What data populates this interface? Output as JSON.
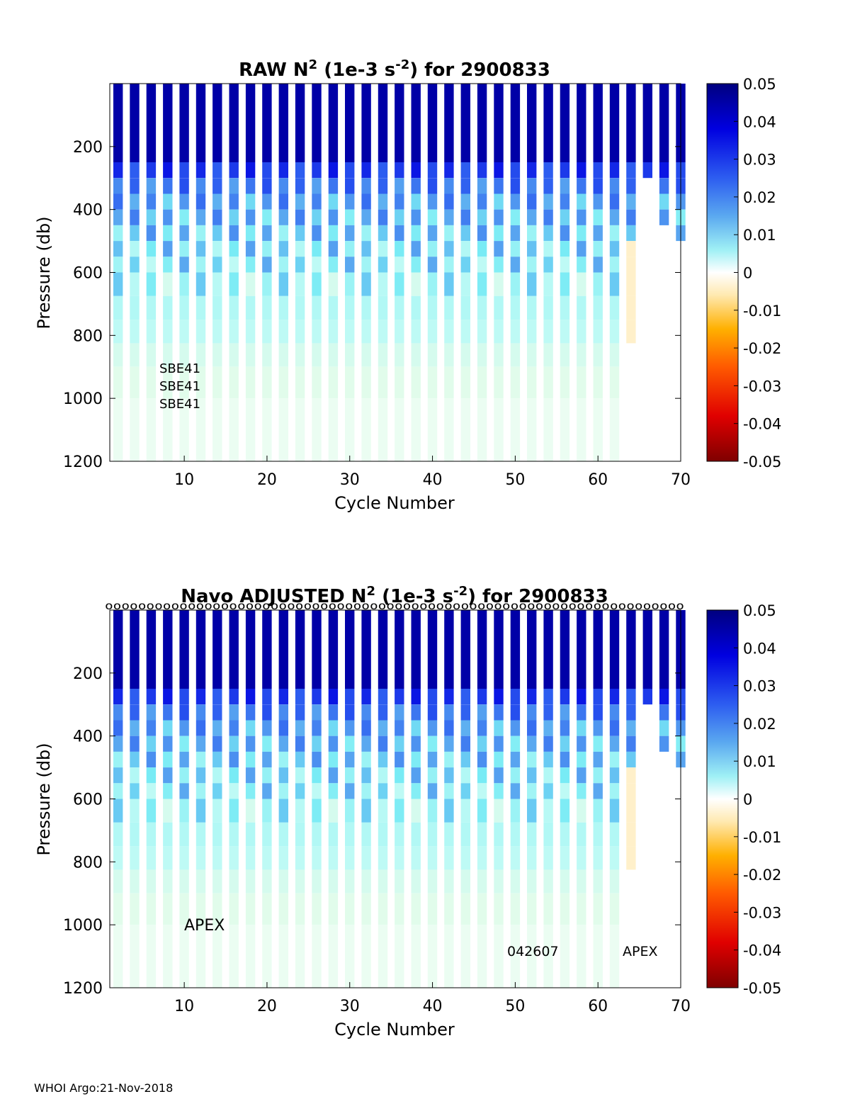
{
  "footer": "WHOI Argo:21-Nov-2018",
  "colorbar": {
    "ticks": [
      "0.05",
      "0.04",
      "0.03",
      "0.02",
      "0.01",
      "0",
      "-0.01",
      "-0.02",
      "-0.03",
      "-0.04",
      "-0.05"
    ],
    "range": [
      -0.05,
      0.05
    ]
  },
  "chart_data": [
    {
      "type": "heatmap",
      "title_main": "RAW N",
      "title_sup": "2",
      "title_mid": " (1e-3 s",
      "title_sup2": "-2",
      "title_end": ") for 2900833",
      "xlabel": "Cycle Number",
      "ylabel": "Pressure (db)",
      "xlim": [
        1,
        70
      ],
      "ylim": [
        1200,
        0
      ],
      "xticks": [
        "10",
        "20",
        "30",
        "40",
        "50",
        "60",
        "70"
      ],
      "yticks": [
        "200",
        "400",
        "600",
        "800",
        "1000",
        "1200"
      ],
      "annotations": [
        "SBE41",
        "SBE41",
        "SBE41"
      ],
      "cycles": [
        2,
        4,
        6,
        8,
        10,
        12,
        14,
        16,
        18,
        20,
        22,
        24,
        26,
        28,
        30,
        32,
        34,
        36,
        38,
        40,
        42,
        44,
        46,
        48,
        50,
        52,
        54,
        56,
        58,
        60,
        62,
        64,
        66,
        68,
        70
      ],
      "depth_boundaries_db": [
        0,
        250,
        300,
        350,
        400,
        450,
        500,
        550,
        600,
        675,
        750,
        825,
        900,
        1000,
        1200
      ],
      "value_bands_1e-3": [
        0.045,
        0.03,
        0.022,
        0.018,
        0.016,
        0.014,
        0.012,
        0.011,
        0.009,
        0.007,
        0.006,
        0.004,
        0.003,
        0.002
      ]
    },
    {
      "type": "heatmap",
      "title_main": "Navo  ADJUSTED N",
      "title_sup": "2",
      "title_mid": " (1e-3 s",
      "title_sup2": "-2",
      "title_end": ") for 2900833",
      "xlabel": "Cycle Number",
      "ylabel": "Pressure (db)",
      "xlim": [
        1,
        70
      ],
      "ylim": [
        1200,
        0
      ],
      "xticks": [
        "10",
        "20",
        "30",
        "40",
        "50",
        "60",
        "70"
      ],
      "yticks": [
        "200",
        "400",
        "600",
        "800",
        "1000",
        "1200"
      ],
      "annotations": [
        "APEX",
        "042607",
        "APEX"
      ],
      "top_markers": "oooooooooooooooooooooooooooooooooooooooooooooooooooooooooooooooooooooo",
      "cycles": [
        2,
        4,
        6,
        8,
        10,
        12,
        14,
        16,
        18,
        20,
        22,
        24,
        26,
        28,
        30,
        32,
        34,
        36,
        38,
        40,
        42,
        44,
        46,
        48,
        50,
        52,
        54,
        56,
        58,
        60,
        62,
        64,
        66,
        68,
        70
      ],
      "depth_boundaries_db": [
        0,
        250,
        300,
        350,
        400,
        450,
        500,
        550,
        600,
        675,
        750,
        825,
        900,
        1000,
        1200
      ],
      "value_bands_1e-3": [
        0.045,
        0.03,
        0.022,
        0.018,
        0.016,
        0.014,
        0.012,
        0.011,
        0.009,
        0.007,
        0.006,
        0.004,
        0.003,
        0.002
      ]
    }
  ]
}
